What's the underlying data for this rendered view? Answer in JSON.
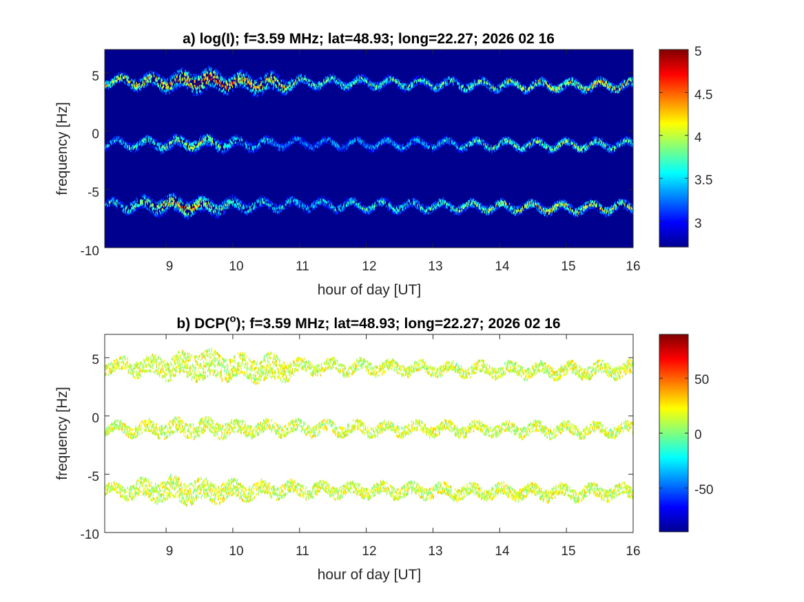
{
  "figure": {
    "panels": [
      {
        "title_prefix": "a) log(I); f=3.59 MHz;  lat=48.93; long=22.27; 2026 02 16",
        "title_sup": "",
        "title_suffix": "",
        "xlabel": "hour of day [UT]",
        "ylabel": "frequency [Hz]",
        "background": "#00008f",
        "xticks": [
          "9",
          "10",
          "11",
          "12",
          "13",
          "14",
          "15",
          "16"
        ],
        "yticks": [
          "5",
          "0",
          "-5",
          "-10"
        ],
        "colorbar_ticks": [
          "5",
          "4.5",
          "4",
          "3.5",
          "3"
        ]
      },
      {
        "title_prefix": "b) DCP(",
        "title_sup": "o",
        "title_suffix": "); f=3.59 MHz;  lat=48.93; long=22.27; 2026 02 16",
        "xlabel": "hour of day [UT]",
        "ylabel": "frequency [Hz]",
        "background": "#ffffff",
        "xticks": [
          "9",
          "10",
          "11",
          "12",
          "13",
          "14",
          "15",
          "16"
        ],
        "yticks": [
          "5",
          "0",
          "-5",
          "-10"
        ],
        "colorbar_ticks": [
          "50",
          "0",
          "-50"
        ]
      }
    ]
  },
  "chart_data": [
    {
      "type": "heatmap",
      "title": "a) log(I); f=3.59 MHz;  lat=48.93; long=22.27; 2026 02 16",
      "xlabel": "hour of day [UT]",
      "ylabel": "frequency [Hz]",
      "xlim": [
        8.08,
        16
      ],
      "ylim": [
        -10,
        7
      ],
      "x_ticks": [
        9,
        10,
        11,
        12,
        13,
        14,
        15,
        16
      ],
      "y_ticks": [
        5,
        0,
        -5,
        -10
      ],
      "colormap": "jet",
      "clim": [
        2.7,
        5
      ],
      "colorbar_ticks": [
        3,
        3.5,
        4,
        4.5,
        5
      ],
      "background_value": 2.7,
      "traces": [
        {
          "name": "upper",
          "center_hz": [
            [
              8.1,
              4.4
            ],
            [
              9.0,
              4.3
            ],
            [
              9.5,
              4.45
            ],
            [
              10.0,
              4.3
            ],
            [
              10.7,
              4.1
            ],
            [
              11.0,
              4.3
            ],
            [
              12.0,
              4.25
            ],
            [
              13.0,
              4.15
            ],
            [
              14.0,
              4.05
            ],
            [
              15.0,
              4.0
            ],
            [
              16.0,
              4.05
            ]
          ],
          "intensity": [
            [
              8.1,
              4.2
            ],
            [
              9.0,
              4.4
            ],
            [
              9.5,
              4.8
            ],
            [
              10.0,
              4.5
            ],
            [
              10.6,
              4.3
            ],
            [
              11.0,
              3.9
            ],
            [
              12.0,
              3.9
            ],
            [
              13.0,
              4.0
            ],
            [
              14.0,
              4.1
            ],
            [
              15.0,
              4.2
            ],
            [
              15.6,
              4.5
            ],
            [
              16.0,
              4.3
            ]
          ],
          "spread_hz": [
            [
              8.1,
              0.35
            ],
            [
              9.2,
              0.8
            ],
            [
              9.6,
              1.0
            ],
            [
              10.0,
              0.7
            ],
            [
              10.6,
              0.9
            ],
            [
              11.0,
              0.4
            ],
            [
              13.0,
              0.35
            ],
            [
              16.0,
              0.4
            ]
          ]
        },
        {
          "name": "middle",
          "center_hz": [
            [
              8.1,
              -1.0
            ],
            [
              9.0,
              -1.0
            ],
            [
              9.5,
              -0.9
            ],
            [
              10.0,
              -1.0
            ],
            [
              11.0,
              -0.95
            ],
            [
              12.0,
              -1.0
            ],
            [
              13.0,
              -1.0
            ],
            [
              14.0,
              -1.05
            ],
            [
              15.0,
              -1.1
            ],
            [
              16.0,
              -1.05
            ]
          ],
          "intensity": [
            [
              8.1,
              3.6
            ],
            [
              9.0,
              4.0
            ],
            [
              9.5,
              4.2
            ],
            [
              10.0,
              3.8
            ],
            [
              11.0,
              3.4
            ],
            [
              12.0,
              3.5
            ],
            [
              13.0,
              3.6
            ],
            [
              14.0,
              4.0
            ],
            [
              15.0,
              4.1
            ],
            [
              16.0,
              3.9
            ]
          ],
          "spread_hz": [
            [
              8.1,
              0.3
            ],
            [
              9.0,
              0.5
            ],
            [
              9.6,
              0.6
            ],
            [
              10.5,
              0.4
            ],
            [
              12.0,
              0.35
            ],
            [
              16.0,
              0.35
            ]
          ]
        },
        {
          "name": "lower",
          "center_hz": [
            [
              8.1,
              -6.3
            ],
            [
              9.0,
              -6.2
            ],
            [
              9.5,
              -6.4
            ],
            [
              10.0,
              -6.3
            ],
            [
              11.0,
              -6.2
            ],
            [
              12.0,
              -6.3
            ],
            [
              13.0,
              -6.35
            ],
            [
              14.0,
              -6.4
            ],
            [
              15.0,
              -6.5
            ],
            [
              16.0,
              -6.4
            ]
          ],
          "intensity": [
            [
              8.1,
              3.8
            ],
            [
              9.0,
              4.3
            ],
            [
              9.3,
              4.5
            ],
            [
              10.0,
              3.9
            ],
            [
              11.0,
              3.6
            ],
            [
              12.0,
              3.8
            ],
            [
              13.0,
              3.9
            ],
            [
              14.0,
              4.1
            ],
            [
              15.0,
              4.3
            ],
            [
              16.0,
              4.2
            ]
          ],
          "spread_hz": [
            [
              8.1,
              0.3
            ],
            [
              9.0,
              0.8
            ],
            [
              9.5,
              0.7
            ],
            [
              10.5,
              0.45
            ],
            [
              12.0,
              0.4
            ],
            [
              16.0,
              0.4
            ]
          ]
        }
      ]
    },
    {
      "type": "heatmap",
      "title": "b) DCP(o); f=3.59 MHz;  lat=48.93; long=22.27; 2026 02 16",
      "xlabel": "hour of day [UT]",
      "ylabel": "frequency [Hz]",
      "xlim": [
        8.08,
        16
      ],
      "ylim": [
        -10,
        7
      ],
      "x_ticks": [
        9,
        10,
        11,
        12,
        13,
        14,
        15,
        16
      ],
      "y_ticks": [
        5,
        0,
        -5,
        -10
      ],
      "colormap": "jet",
      "clim": [
        -90,
        90
      ],
      "colorbar_ticks": [
        -50,
        0,
        50
      ],
      "background": "masked (white)",
      "values_around": 15,
      "traces": [
        {
          "name": "upper",
          "center_hz": [
            [
              8.1,
              4.4
            ],
            [
              9.0,
              4.3
            ],
            [
              9.5,
              4.45
            ],
            [
              10.0,
              4.3
            ],
            [
              10.7,
              4.1
            ],
            [
              11.0,
              4.3
            ],
            [
              12.0,
              4.25
            ],
            [
              13.0,
              4.15
            ],
            [
              14.0,
              4.05
            ],
            [
              15.0,
              4.0
            ],
            [
              16.0,
              4.05
            ]
          ],
          "spread_hz": [
            [
              8.1,
              0.45
            ],
            [
              9.2,
              1.0
            ],
            [
              9.6,
              1.2
            ],
            [
              10.0,
              0.9
            ],
            [
              10.6,
              1.1
            ],
            [
              11.0,
              0.5
            ],
            [
              13.0,
              0.45
            ],
            [
              16.0,
              0.55
            ]
          ]
        },
        {
          "name": "middle",
          "center_hz": [
            [
              8.1,
              -1.0
            ],
            [
              9.0,
              -1.0
            ],
            [
              9.5,
              -0.9
            ],
            [
              10.0,
              -1.0
            ],
            [
              11.0,
              -0.95
            ],
            [
              12.0,
              -1.0
            ],
            [
              13.0,
              -1.0
            ],
            [
              14.0,
              -1.05
            ],
            [
              15.0,
              -1.1
            ],
            [
              16.0,
              -1.05
            ]
          ],
          "spread_hz": [
            [
              8.1,
              0.35
            ],
            [
              9.0,
              0.6
            ],
            [
              9.6,
              0.7
            ],
            [
              10.5,
              0.5
            ],
            [
              12.0,
              0.45
            ],
            [
              16.0,
              0.45
            ]
          ]
        },
        {
          "name": "lower",
          "center_hz": [
            [
              8.1,
              -6.3
            ],
            [
              9.0,
              -6.2
            ],
            [
              9.5,
              -6.4
            ],
            [
              10.0,
              -6.3
            ],
            [
              11.0,
              -6.2
            ],
            [
              12.0,
              -6.3
            ],
            [
              13.0,
              -6.35
            ],
            [
              14.0,
              -6.4
            ],
            [
              15.0,
              -6.5
            ],
            [
              16.0,
              -6.4
            ]
          ],
          "spread_hz": [
            [
              8.1,
              0.35
            ],
            [
              9.0,
              1.0
            ],
            [
              9.5,
              0.9
            ],
            [
              10.5,
              0.55
            ],
            [
              12.0,
              0.5
            ],
            [
              16.0,
              0.5
            ]
          ]
        }
      ]
    }
  ]
}
